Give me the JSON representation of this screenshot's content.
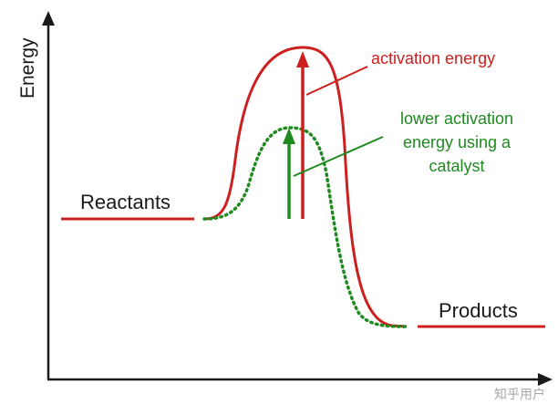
{
  "axes": {
    "ylabel": "Energy"
  },
  "labels": {
    "reactants": "Reactants",
    "products": "Products",
    "activation_energy": "activation energy",
    "catalyst_line1": "lower activation",
    "catalyst_line2": "energy using a",
    "catalyst_line3": "catalyst"
  },
  "watermark": "知乎用户",
  "colors": {
    "uncatalyzed": "#cc1f1f",
    "catalyzed": "#1f8a1f",
    "axis": "#1a1a1a"
  }
}
